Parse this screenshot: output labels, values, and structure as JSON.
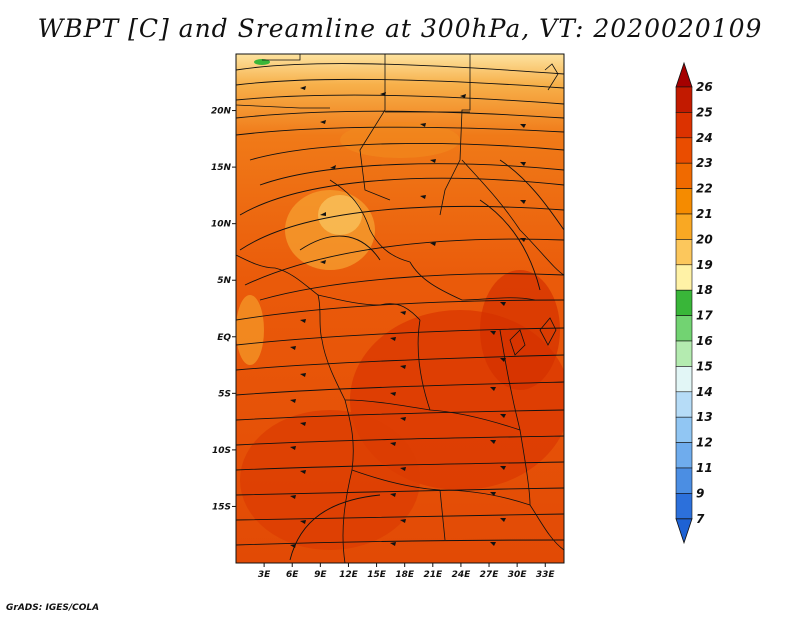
{
  "title": "WBPT [C] and Sreamline at 300hPa, VT: 2020020109",
  "footer": "GrADS: IGES/COLA",
  "map": {
    "lon_range": [
      0,
      35
    ],
    "lat_range": [
      -20,
      25
    ],
    "lat_ticks": [
      {
        "value": 20,
        "label": "20N"
      },
      {
        "value": 15,
        "label": "15N"
      },
      {
        "value": 10,
        "label": "10N"
      },
      {
        "value": 5,
        "label": "5N"
      },
      {
        "value": 0,
        "label": "EQ"
      },
      {
        "value": -5,
        "label": "5S"
      },
      {
        "value": -10,
        "label": "10S"
      },
      {
        "value": -15,
        "label": "15S"
      }
    ],
    "lon_ticks": [
      {
        "value": 3,
        "label": "3E"
      },
      {
        "value": 6,
        "label": "6E"
      },
      {
        "value": 9,
        "label": "9E"
      },
      {
        "value": 12,
        "label": "12E"
      },
      {
        "value": 15,
        "label": "15E"
      },
      {
        "value": 18,
        "label": "18E"
      },
      {
        "value": 21,
        "label": "21E"
      },
      {
        "value": 24,
        "label": "24E"
      },
      {
        "value": 27,
        "label": "27E"
      },
      {
        "value": 30,
        "label": "30E"
      },
      {
        "value": 33,
        "label": "33E"
      }
    ]
  },
  "colorbar": {
    "levels": [
      {
        "label": "26",
        "color": "#a50000"
      },
      {
        "label": "25",
        "color": "#c21a00"
      },
      {
        "label": "24",
        "color": "#dc3200"
      },
      {
        "label": "23",
        "color": "#ea4d00"
      },
      {
        "label": "22",
        "color": "#f06a00"
      },
      {
        "label": "21",
        "color": "#f58b00"
      },
      {
        "label": "20",
        "color": "#f9a823"
      },
      {
        "label": "19",
        "color": "#fcc75c"
      },
      {
        "label": "18",
        "color": "#fff2a6"
      },
      {
        "label": "17",
        "color": "#39b639"
      },
      {
        "label": "16",
        "color": "#72d372"
      },
      {
        "label": "15",
        "color": "#b4ebb0"
      },
      {
        "label": "14",
        "color": "#e2f6f6"
      },
      {
        "label": "13",
        "color": "#b6dcf7"
      },
      {
        "label": "12",
        "color": "#91c6f3"
      },
      {
        "label": "11",
        "color": "#6faced"
      },
      {
        "label": "9",
        "color": "#4b8ee3"
      },
      {
        "label": "7",
        "color": "#2c70db"
      }
    ],
    "bottom_arrow_color": "#1e62d4"
  }
}
